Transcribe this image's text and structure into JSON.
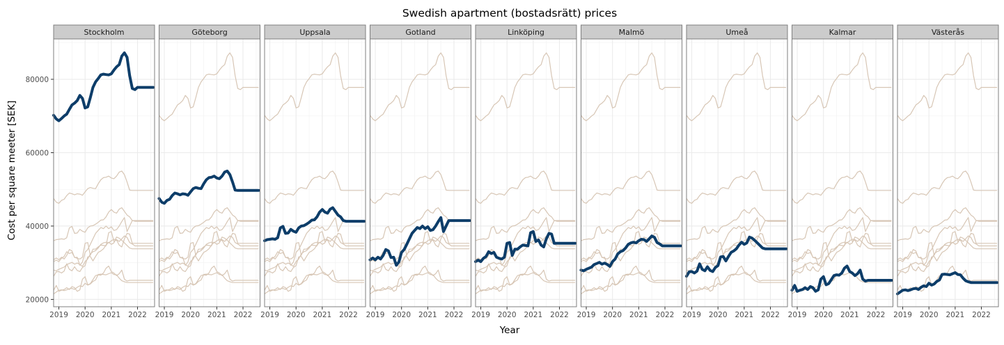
{
  "chart_data": {
    "type": "line",
    "title": "Swedish apartment (bostadsrätt) prices",
    "xlabel": "Year",
    "ylabel": "Cost per square meeter [SEK]",
    "x_ticks": [
      "2019",
      "2020",
      "2021",
      "2022"
    ],
    "y_ticks": [
      "20000",
      "40000",
      "60000",
      "80000"
    ],
    "ylim": [
      18000,
      91000
    ],
    "xlim": [
      2018.8,
      2022.65
    ],
    "grid": true,
    "facet": "one panel per city; the highlighted city is drawn bold, all other cities faint in the background",
    "colors": {
      "highlight": "#0d3d69",
      "background": "#d7c6b5",
      "strip": "#cccccc",
      "panel_border": "#7f7f7f",
      "grid": "#ebebeb"
    },
    "x": [
      2018.8,
      2018.9,
      2019.0,
      2019.1,
      2019.2,
      2019.3,
      2019.4,
      2019.5,
      2019.6,
      2019.7,
      2019.8,
      2019.9,
      2020.0,
      2020.1,
      2020.2,
      2020.3,
      2020.4,
      2020.5,
      2020.6,
      2020.7,
      2020.8,
      2020.9,
      2021.0,
      2021.1,
      2021.2,
      2021.3,
      2021.4,
      2021.5,
      2021.6,
      2021.7,
      2021.8,
      2021.9,
      2022.0,
      2022.1,
      2022.2,
      2022.3,
      2022.4,
      2022.5,
      2022.6
    ],
    "series": [
      {
        "name": "Stockholm",
        "values": [
          70200,
          69200,
          68700,
          69300,
          70000,
          70500,
          71800,
          73000,
          73500,
          74200,
          75600,
          74800,
          72200,
          72500,
          75000,
          77800,
          79300,
          80200,
          81200,
          81400,
          81300,
          81200,
          81500,
          82500,
          83400,
          84000,
          86300,
          87200,
          86000,
          81000,
          77500,
          77200,
          77800,
          77800,
          77800,
          77800,
          77800,
          77800,
          77800
        ]
      },
      {
        "name": "Göteborg",
        "values": [
          47500,
          46500,
          46200,
          47000,
          47300,
          48300,
          49000,
          48800,
          48500,
          48800,
          48700,
          48400,
          49300,
          50200,
          50500,
          50300,
          50200,
          51500,
          52600,
          53200,
          53300,
          53600,
          53100,
          52900,
          53600,
          54700,
          55000,
          54000,
          52000,
          49800,
          49700,
          49700,
          49700,
          49700,
          49700,
          49700,
          49700,
          49700,
          49700
        ]
      },
      {
        "name": "Uppsala",
        "values": [
          36000,
          36300,
          36400,
          36500,
          36400,
          36800,
          39500,
          39900,
          38000,
          38100,
          39100,
          38600,
          38300,
          39500,
          40000,
          40100,
          40500,
          41000,
          41600,
          41700,
          42500,
          43800,
          44500,
          43800,
          43500,
          44600,
          45000,
          44000,
          43000,
          42500,
          41500,
          41300,
          41300,
          41300,
          41300,
          41300,
          41300,
          41300,
          41300
        ]
      },
      {
        "name": "Gotland",
        "values": [
          30800,
          31300,
          30800,
          31500,
          31000,
          32000,
          33600,
          33200,
          31400,
          31500,
          29300,
          30200,
          32800,
          33600,
          35000,
          36500,
          38000,
          38800,
          39600,
          39300,
          40000,
          39300,
          39800,
          38800,
          39000,
          40000,
          41200,
          42300,
          38500,
          40000,
          41500,
          41500,
          41500,
          41500,
          41500,
          41500,
          41500,
          41500,
          41500
        ]
      },
      {
        "name": "Linköping",
        "values": [
          30300,
          30700,
          30300,
          31200,
          31700,
          33000,
          32500,
          32800,
          31500,
          31200,
          31000,
          31500,
          35300,
          35500,
          32000,
          33700,
          33700,
          34300,
          34800,
          34700,
          34600,
          38200,
          38500,
          35800,
          36200,
          34800,
          34300,
          36500,
          38000,
          37800,
          35300,
          35300,
          35300,
          35300,
          35300,
          35300,
          35300,
          35300,
          35300
        ]
      },
      {
        "name": "Malmö",
        "values": [
          28000,
          27800,
          28200,
          28500,
          28800,
          29500,
          29800,
          30100,
          29600,
          29900,
          29500,
          29000,
          30300,
          31000,
          32400,
          33000,
          33300,
          34000,
          35000,
          35400,
          35600,
          35400,
          36000,
          36400,
          36300,
          35800,
          36500,
          37300,
          36900,
          35500,
          35100,
          34600,
          34600,
          34600,
          34600,
          34600,
          34600,
          34600,
          34600
        ]
      },
      {
        "name": "Umeå",
        "values": [
          26300,
          27500,
          27600,
          27200,
          27700,
          29700,
          28200,
          27800,
          28900,
          27900,
          27600,
          28700,
          29200,
          31600,
          31700,
          30500,
          31700,
          32800,
          33200,
          33800,
          34800,
          35600,
          35000,
          35400,
          37000,
          36700,
          36100,
          35400,
          34700,
          34000,
          33800,
          33800,
          33800,
          33800,
          33800,
          33800,
          33800,
          33800,
          33800
        ]
      },
      {
        "name": "Kalmar",
        "values": [
          22500,
          23800,
          22200,
          22500,
          22700,
          23200,
          22700,
          23500,
          23200,
          22200,
          22600,
          25500,
          26200,
          24000,
          24300,
          25400,
          26500,
          26700,
          26600,
          27200,
          28500,
          29100,
          27600,
          27200,
          26500,
          27000,
          28000,
          25500,
          25000,
          25200,
          25200,
          25200,
          25200,
          25200,
          25200,
          25200,
          25200,
          25200,
          25200
        ]
      },
      {
        "name": "Västerås",
        "values": [
          21500,
          22000,
          22500,
          22600,
          22400,
          22600,
          22900,
          23000,
          22700,
          23300,
          23700,
          23500,
          24400,
          23900,
          24200,
          24900,
          25300,
          26800,
          26900,
          26800,
          26700,
          27000,
          27300,
          26800,
          26700,
          25800,
          25100,
          24800,
          24600,
          24600,
          24600,
          24600,
          24600,
          24600,
          24600,
          24600,
          24600,
          24600,
          24600
        ]
      }
    ]
  }
}
